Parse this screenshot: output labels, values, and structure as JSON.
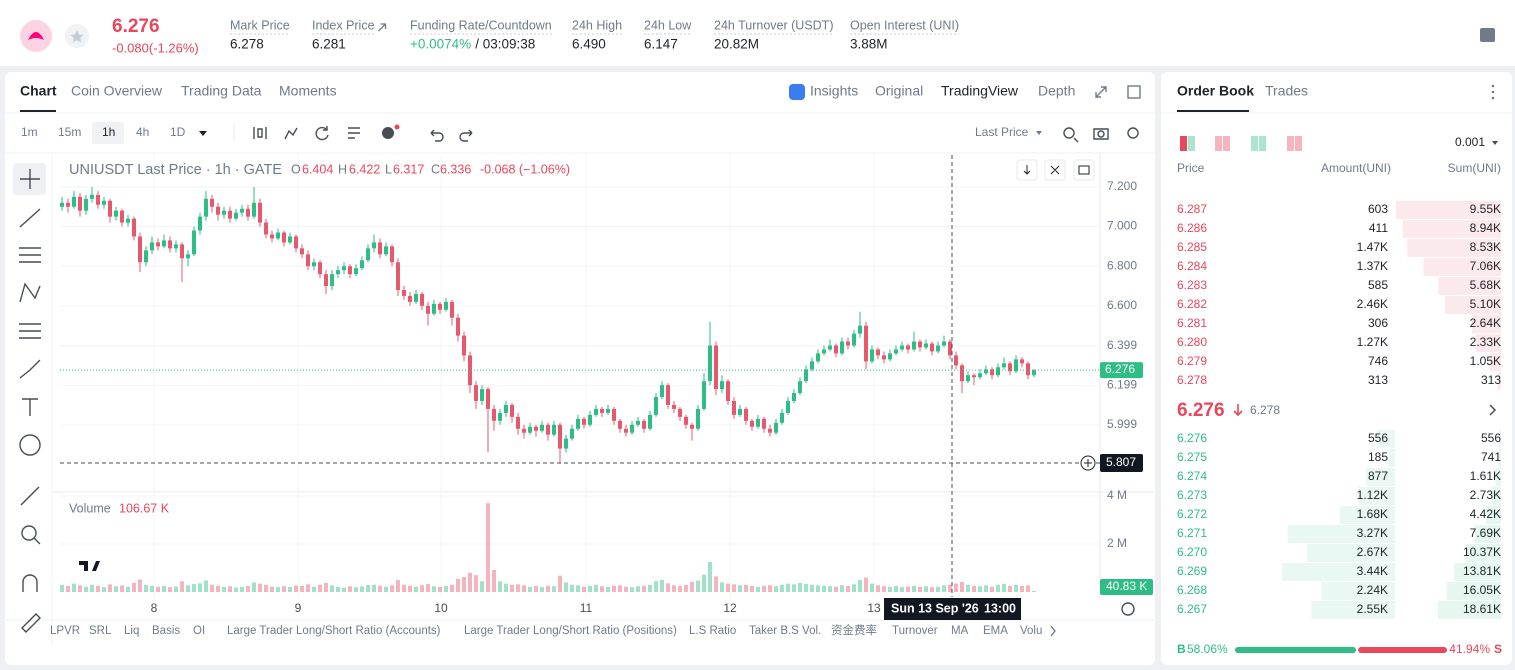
{
  "header": {
    "price": "6.276",
    "change": "-0.080(-1.26%)",
    "stats": [
      {
        "label": "Mark Price",
        "value": "6.278"
      },
      {
        "label": "Index Price",
        "value": "6.281"
      },
      {
        "label": "Funding Rate/Countdown",
        "value": "+0.0074%",
        "value2": "/ 03:09:38"
      },
      {
        "label": "24h High",
        "value": "6.490"
      },
      {
        "label": "24h Low",
        "value": "6.147"
      },
      {
        "label": "24h Turnover (USDT)",
        "value": "20.82M"
      },
      {
        "label": "Open Interest (UNI)",
        "value": "3.88M"
      }
    ]
  },
  "tabs": [
    "Chart",
    "Coin Overview",
    "Trading Data",
    "Moments"
  ],
  "views": [
    "Insights",
    "Original",
    "TradingView",
    "Depth"
  ],
  "intervals": [
    "1m",
    "15m",
    "1h",
    "4h",
    "1D"
  ],
  "price_type": "Last Price",
  "chart_data": {
    "type": "candlestick",
    "title": "UNIUSDT Last Price · 1h · GATE",
    "ohlc_legend": [
      {
        "key": "O",
        "value": "6.404"
      },
      {
        "key": "H",
        "value": "6.422"
      },
      {
        "key": "L",
        "value": "6.317"
      },
      {
        "key": "C",
        "value": "6.336"
      }
    ],
    "legend_change": "-0.068 (−1.06%)",
    "up_color": "#2ebd85",
    "down_color": "#e8586d",
    "ylim": [
      5.671,
      7.361
    ],
    "yticks": [
      {
        "value": 7.2,
        "label": "7.200"
      },
      {
        "value": 7,
        "label": "7.000"
      },
      {
        "value": 6.8,
        "label": "6.800"
      },
      {
        "value": 6.6,
        "label": "6.600"
      },
      6.399,
      6.199,
      5.999
    ],
    "x_labels": [
      "8",
      "9",
      "10",
      "11",
      "12",
      "13"
    ],
    "last_price": 6.276,
    "crosshair_price": 5.807,
    "crosshair_date": "Sun 13 Sep '26",
    "crosshair_time": "13:00",
    "candles": [
      [
        7.1,
        7.15,
        7.08,
        7.12
      ],
      [
        7.12,
        7.14,
        7.07,
        7.1
      ],
      [
        7.1,
        7.18,
        7.09,
        7.15
      ],
      [
        7.15,
        7.17,
        7.05,
        7.08
      ],
      [
        7.08,
        7.16,
        7.06,
        7.14
      ],
      [
        7.14,
        7.2,
        7.12,
        7.16
      ],
      [
        7.16,
        7.18,
        7.09,
        7.11
      ],
      [
        7.11,
        7.15,
        7.09,
        7.13
      ],
      [
        7.13,
        7.14,
        7.02,
        7.05
      ],
      [
        7.05,
        7.1,
        7.03,
        7.08
      ],
      [
        7.08,
        7.09,
        7.0,
        7.02
      ],
      [
        7.02,
        7.06,
        7.0,
        7.04
      ],
      [
        7.04,
        7.05,
        6.93,
        6.95
      ],
      [
        6.95,
        6.97,
        6.77,
        6.82
      ],
      [
        6.82,
        6.9,
        6.8,
        6.88
      ],
      [
        6.88,
        6.95,
        6.86,
        6.92
      ],
      [
        6.92,
        6.94,
        6.88,
        6.9
      ],
      [
        6.9,
        6.96,
        6.89,
        6.93
      ],
      [
        6.93,
        6.95,
        6.87,
        6.89
      ],
      [
        6.89,
        6.93,
        6.87,
        6.91
      ],
      [
        6.91,
        6.92,
        6.72,
        6.84
      ],
      [
        6.84,
        6.88,
        6.8,
        6.86
      ],
      [
        6.86,
        7.0,
        6.85,
        6.98
      ],
      [
        6.98,
        7.07,
        6.96,
        7.05
      ],
      [
        7.05,
        7.18,
        7.03,
        7.14
      ],
      [
        7.14,
        7.16,
        7.07,
        7.1
      ],
      [
        7.1,
        7.12,
        7.03,
        7.06
      ],
      [
        7.06,
        7.1,
        7.04,
        7.08
      ],
      [
        7.08,
        7.1,
        7.02,
        7.04
      ],
      [
        7.04,
        7.09,
        7.03,
        7.07
      ],
      [
        7.07,
        7.11,
        7.05,
        7.09
      ],
      [
        7.09,
        7.11,
        7.03,
        7.05
      ],
      [
        7.05,
        7.2,
        7.04,
        7.12
      ],
      [
        7.12,
        7.14,
        7.0,
        7.02
      ],
      [
        7.02,
        7.04,
        6.94,
        6.96
      ],
      [
        6.96,
        6.98,
        6.92,
        6.94
      ],
      [
        6.94,
        6.99,
        6.93,
        6.97
      ],
      [
        6.97,
        6.98,
        6.9,
        6.92
      ],
      [
        6.92,
        6.97,
        6.91,
        6.95
      ],
      [
        6.95,
        6.96,
        6.87,
        6.89
      ],
      [
        6.89,
        6.91,
        6.84,
        6.86
      ],
      [
        6.86,
        6.88,
        6.78,
        6.8
      ],
      [
        6.8,
        6.84,
        6.78,
        6.82
      ],
      [
        6.82,
        6.83,
        6.74,
        6.76
      ],
      [
        6.76,
        6.78,
        6.66,
        6.7
      ],
      [
        6.7,
        6.78,
        6.68,
        6.76
      ],
      [
        6.76,
        6.8,
        6.74,
        6.78
      ],
      [
        6.78,
        6.82,
        6.76,
        6.8
      ],
      [
        6.8,
        6.81,
        6.74,
        6.76
      ],
      [
        6.76,
        6.81,
        6.75,
        6.79
      ],
      [
        6.79,
        6.85,
        6.78,
        6.83
      ],
      [
        6.83,
        6.91,
        6.82,
        6.89
      ],
      [
        6.89,
        6.96,
        6.87,
        6.92
      ],
      [
        6.92,
        6.94,
        6.84,
        6.86
      ],
      [
        6.86,
        6.92,
        6.85,
        6.9
      ],
      [
        6.9,
        6.91,
        6.8,
        6.82
      ],
      [
        6.82,
        6.84,
        6.65,
        6.68
      ],
      [
        6.68,
        6.7,
        6.63,
        6.65
      ],
      [
        6.65,
        6.67,
        6.6,
        6.62
      ],
      [
        6.62,
        6.68,
        6.61,
        6.66
      ],
      [
        6.66,
        6.67,
        6.58,
        6.6
      ],
      [
        6.6,
        6.62,
        6.5,
        6.56
      ],
      [
        6.56,
        6.63,
        6.55,
        6.61
      ],
      [
        6.61,
        6.62,
        6.56,
        6.58
      ],
      [
        6.58,
        6.64,
        6.57,
        6.62
      ],
      [
        6.62,
        6.63,
        6.5,
        6.54
      ],
      [
        6.54,
        6.56,
        6.42,
        6.45
      ],
      [
        6.45,
        6.47,
        6.32,
        6.35
      ],
      [
        6.35,
        6.37,
        6.16,
        6.2
      ],
      [
        6.2,
        6.22,
        6.08,
        6.12
      ],
      [
        6.12,
        6.2,
        6.1,
        6.18
      ],
      [
        6.18,
        6.19,
        5.86,
        6.08
      ],
      [
        6.08,
        6.1,
        5.97,
        6.02
      ],
      [
        6.02,
        6.08,
        6.0,
        6.06
      ],
      [
        6.06,
        6.12,
        6.04,
        6.1
      ],
      [
        6.1,
        6.11,
        6.01,
        6.04
      ],
      [
        6.04,
        6.06,
        5.95,
        5.98
      ],
      [
        5.98,
        6.0,
        5.93,
        5.96
      ],
      [
        5.96,
        6.01,
        5.95,
        5.99
      ],
      [
        5.99,
        6.0,
        5.94,
        5.97
      ],
      [
        5.97,
        6.02,
        5.96,
        6.0
      ],
      [
        6.0,
        6.01,
        5.92,
        5.95
      ],
      [
        5.95,
        6.02,
        5.94,
        6.0
      ],
      [
        6.0,
        6.01,
        5.81,
        5.88
      ],
      [
        5.88,
        5.95,
        5.86,
        5.93
      ],
      [
        5.93,
        6.0,
        5.92,
        5.98
      ],
      [
        5.98,
        6.05,
        5.97,
        6.03
      ],
      [
        6.03,
        6.04,
        5.98,
        6.0
      ],
      [
        6.0,
        6.07,
        5.99,
        6.05
      ],
      [
        6.05,
        6.1,
        6.04,
        6.08
      ],
      [
        6.08,
        6.09,
        6.04,
        6.06
      ],
      [
        6.06,
        6.1,
        6.05,
        6.08
      ],
      [
        6.08,
        6.09,
        6.0,
        6.02
      ],
      [
        6.02,
        6.03,
        5.96,
        5.98
      ],
      [
        5.98,
        6.0,
        5.94,
        5.96
      ],
      [
        5.96,
        6.02,
        5.95,
        6.0
      ],
      [
        6.0,
        6.04,
        5.99,
        6.02
      ],
      [
        6.02,
        6.03,
        5.96,
        5.98
      ],
      [
        5.98,
        6.07,
        5.97,
        6.05
      ],
      [
        6.05,
        6.16,
        6.04,
        6.14
      ],
      [
        6.14,
        6.22,
        6.13,
        6.2
      ],
      [
        6.2,
        6.21,
        6.08,
        6.1
      ],
      [
        6.1,
        6.12,
        6.06,
        6.08
      ],
      [
        6.08,
        6.09,
        6.02,
        6.04
      ],
      [
        6.04,
        6.05,
        5.98,
        6.0
      ],
      [
        6.0,
        6.01,
        5.92,
        5.98
      ],
      [
        5.98,
        6.1,
        5.97,
        6.08
      ],
      [
        6.08,
        6.26,
        6.07,
        6.22
      ],
      [
        6.22,
        6.52,
        6.2,
        6.4
      ],
      [
        6.4,
        6.42,
        6.15,
        6.18
      ],
      [
        6.18,
        6.25,
        6.16,
        6.22
      ],
      [
        6.22,
        6.23,
        6.1,
        6.12
      ],
      [
        6.12,
        6.14,
        6.03,
        6.05
      ],
      [
        6.05,
        6.1,
        6.04,
        6.08
      ],
      [
        6.08,
        6.09,
        6.0,
        6.02
      ],
      [
        6.02,
        6.03,
        5.97,
        5.99
      ],
      [
        5.99,
        6.05,
        5.98,
        6.03
      ],
      [
        6.03,
        6.04,
        5.96,
        5.98
      ],
      [
        5.98,
        6.0,
        5.94,
        5.96
      ],
      [
        5.96,
        6.03,
        5.95,
        6.01
      ],
      [
        6.01,
        6.08,
        6.0,
        6.06
      ],
      [
        6.06,
        6.14,
        6.05,
        6.12
      ],
      [
        6.12,
        6.18,
        6.11,
        6.16
      ],
      [
        6.16,
        6.24,
        6.15,
        6.22
      ],
      [
        6.22,
        6.3,
        6.21,
        6.28
      ],
      [
        6.28,
        6.34,
        6.27,
        6.32
      ],
      [
        6.32,
        6.38,
        6.31,
        6.36
      ],
      [
        6.36,
        6.4,
        6.35,
        6.38
      ],
      [
        6.38,
        6.43,
        6.37,
        6.4
      ],
      [
        6.4,
        6.41,
        6.34,
        6.36
      ],
      [
        6.36,
        6.44,
        6.35,
        6.42
      ],
      [
        6.42,
        6.44,
        6.38,
        6.4
      ],
      [
        6.4,
        6.48,
        6.39,
        6.46
      ],
      [
        6.46,
        6.57,
        6.44,
        6.5
      ],
      [
        6.5,
        6.52,
        6.28,
        6.32
      ],
      [
        6.32,
        6.4,
        6.31,
        6.38
      ],
      [
        6.38,
        6.39,
        6.33,
        6.35
      ],
      [
        6.35,
        6.37,
        6.31,
        6.33
      ],
      [
        6.33,
        6.38,
        6.32,
        6.36
      ],
      [
        6.36,
        6.4,
        6.35,
        6.38
      ],
      [
        6.38,
        6.42,
        6.37,
        6.4
      ],
      [
        6.4,
        6.41,
        6.36,
        6.38
      ],
      [
        6.38,
        6.47,
        6.37,
        6.42
      ],
      [
        6.42,
        6.43,
        6.37,
        6.39
      ],
      [
        6.39,
        6.43,
        6.38,
        6.41
      ],
      [
        6.41,
        6.42,
        6.35,
        6.37
      ],
      [
        6.37,
        6.42,
        6.36,
        6.4
      ],
      [
        6.4,
        6.45,
        6.39,
        6.42
      ],
      [
        6.42,
        6.43,
        6.33,
        6.35
      ],
      [
        6.35,
        6.37,
        6.28,
        6.3
      ],
      [
        6.3,
        6.31,
        6.16,
        6.22
      ],
      [
        6.22,
        6.27,
        6.21,
        6.25
      ],
      [
        6.25,
        6.26,
        6.2,
        6.24
      ],
      [
        6.24,
        6.28,
        6.23,
        6.26
      ],
      [
        6.26,
        6.3,
        6.25,
        6.28
      ],
      [
        6.28,
        6.29,
        6.23,
        6.25
      ],
      [
        6.25,
        6.31,
        6.24,
        6.29
      ],
      [
        6.29,
        6.34,
        6.28,
        6.31
      ],
      [
        6.31,
        6.32,
        6.25,
        6.27
      ],
      [
        6.27,
        6.35,
        6.26,
        6.33
      ],
      [
        6.33,
        6.34,
        6.29,
        6.31
      ],
      [
        6.31,
        6.32,
        6.23,
        6.25
      ],
      [
        6.25,
        6.28,
        6.24,
        6.276
      ]
    ],
    "volume_title": "Volume",
    "volume_value": "106.67 K",
    "volume_last": "40.83 K",
    "volume_ylim": [
      0,
      4.04
    ],
    "volume_yticks": [
      {
        "value": 4,
        "label": "4 M"
      },
      {
        "value": 2,
        "label": "2 M"
      }
    ],
    "volumes": [
      0.3,
      0.25,
      0.35,
      0.28,
      0.22,
      0.3,
      0.26,
      0.2,
      0.32,
      0.24,
      0.27,
      0.22,
      0.38,
      0.52,
      0.3,
      0.26,
      0.22,
      0.25,
      0.2,
      0.23,
      0.45,
      0.28,
      0.33,
      0.36,
      0.48,
      0.3,
      0.26,
      0.21,
      0.24,
      0.19,
      0.22,
      0.25,
      0.4,
      0.35,
      0.3,
      0.22,
      0.2,
      0.24,
      0.21,
      0.27,
      0.25,
      0.32,
      0.22,
      0.3,
      0.38,
      0.28,
      0.21,
      0.18,
      0.24,
      0.2,
      0.23,
      0.29,
      0.3,
      0.26,
      0.22,
      0.28,
      0.5,
      0.3,
      0.26,
      0.22,
      0.28,
      0.33,
      0.24,
      0.21,
      0.25,
      0.3,
      0.55,
      0.62,
      0.8,
      0.7,
      0.45,
      3.7,
      0.92,
      0.45,
      0.35,
      0.3,
      0.32,
      0.28,
      0.22,
      0.25,
      0.2,
      0.26,
      0.24,
      0.68,
      0.4,
      0.3,
      0.28,
      0.22,
      0.26,
      0.3,
      0.24,
      0.22,
      0.26,
      0.28,
      0.22,
      0.2,
      0.24,
      0.26,
      0.3,
      0.45,
      0.5,
      0.36,
      0.28,
      0.25,
      0.3,
      0.42,
      0.48,
      0.72,
      1.25,
      0.65,
      0.4,
      0.35,
      0.32,
      0.28,
      0.3,
      0.25,
      0.22,
      0.26,
      0.28,
      0.24,
      0.3,
      0.35,
      0.32,
      0.38,
      0.34,
      0.3,
      0.28,
      0.26,
      0.24,
      0.22,
      0.28,
      0.25,
      0.32,
      0.5,
      0.6,
      0.35,
      0.28,
      0.24,
      0.22,
      0.25,
      0.2,
      0.23,
      0.26,
      0.22,
      0.24,
      0.2,
      0.22,
      0.28,
      0.3,
      0.35,
      0.42,
      0.3,
      0.26,
      0.24,
      0.28,
      0.22,
      0.3,
      0.34,
      0.26,
      0.3,
      0.25,
      0.28,
      0.04083
    ]
  },
  "indicators": [
    "LPVR",
    "SRL",
    "Liq",
    "Basis",
    "OI",
    "Large Trader Long/Short Ratio (Accounts)",
    "Large Trader Long/Short Ratio (Positions)",
    "L.S Ratio",
    "Taker B.S Vol.",
    "资金费率",
    "Turnover",
    "MA",
    "EMA",
    "Volu"
  ],
  "order_book": {
    "tabs": [
      "Order Book",
      "Trades"
    ],
    "tick": "0.001",
    "columns": [
      "Price",
      "Amount(UNI)",
      "Sum(UNI)"
    ],
    "asks": [
      [
        "6.287",
        "603",
        "9.55K"
      ],
      [
        "6.286",
        "411",
        "8.94K"
      ],
      [
        "6.285",
        "1.47K",
        "8.53K"
      ],
      [
        "6.284",
        "1.37K",
        "7.06K"
      ],
      [
        "6.283",
        "585",
        "5.68K"
      ],
      [
        "6.282",
        "2.46K",
        "5.10K"
      ],
      [
        "6.281",
        "306",
        "2.64K"
      ],
      [
        "6.280",
        "1.27K",
        "2.33K"
      ],
      [
        "6.279",
        "746",
        "1.05K"
      ],
      [
        "6.278",
        "313",
        "313"
      ]
    ],
    "mid_price": "6.276",
    "mark_price": "6.278",
    "bids": [
      [
        "6.276",
        "556",
        "556"
      ],
      [
        "6.275",
        "185",
        "741"
      ],
      [
        "6.274",
        "877",
        "1.61K"
      ],
      [
        "6.273",
        "1.12K",
        "2.73K"
      ],
      [
        "6.272",
        "1.68K",
        "4.42K"
      ],
      [
        "6.271",
        "3.27K",
        "7.69K"
      ],
      [
        "6.270",
        "2.67K",
        "10.37K"
      ],
      [
        "6.269",
        "3.44K",
        "13.81K"
      ],
      [
        "6.268",
        "2.24K",
        "16.05K"
      ],
      [
        "6.267",
        "2.55K",
        "18.61K"
      ]
    ],
    "buy_label": "B",
    "buy_ratio": "58.06%",
    "sell_ratio": "41.94%",
    "sell_label": "S"
  }
}
